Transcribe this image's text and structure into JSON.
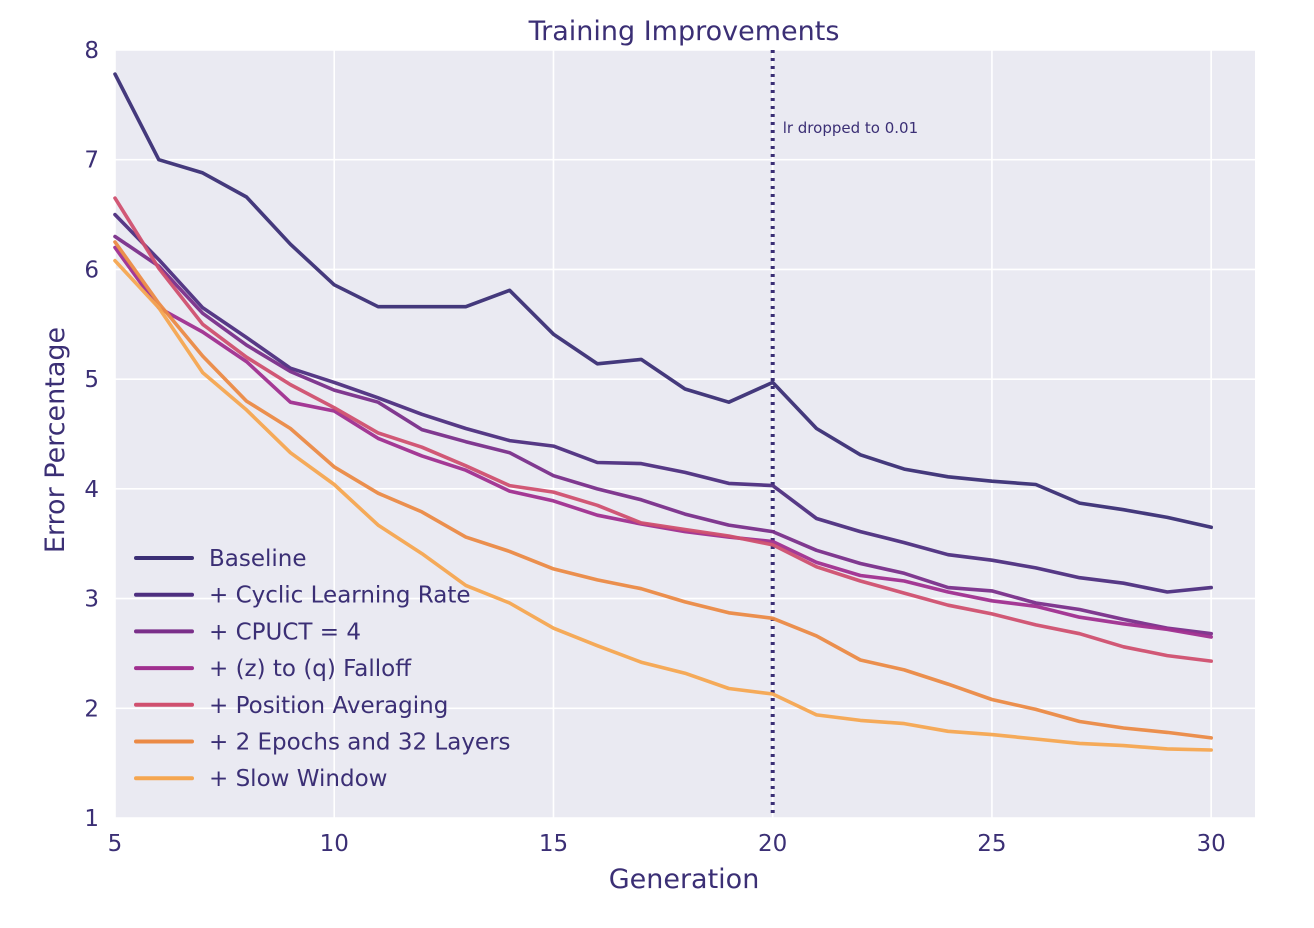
{
  "chart_data": {
    "type": "line",
    "title": "Training Improvements",
    "xlabel": "Generation",
    "ylabel": "Error Percentage",
    "xlim": [
      5,
      31
    ],
    "ylim": [
      1,
      8
    ],
    "xticks": [
      5,
      10,
      15,
      20,
      25,
      30
    ],
    "yticks": [
      1,
      2,
      3,
      4,
      5,
      6,
      7,
      8
    ],
    "grid": true,
    "legend_position": "lower-left",
    "x": [
      5,
      6,
      7,
      8,
      9,
      10,
      11,
      12,
      13,
      14,
      15,
      16,
      17,
      18,
      19,
      20,
      21,
      22,
      23,
      24,
      25,
      26,
      27,
      28,
      29,
      30
    ],
    "series": [
      {
        "name": "Baseline",
        "color": "#3b2f75",
        "values": [
          7.78,
          7.0,
          6.88,
          6.66,
          6.23,
          5.86,
          5.66,
          5.66,
          5.66,
          5.81,
          5.41,
          5.14,
          5.18,
          4.91,
          4.79,
          4.97,
          4.55,
          4.31,
          4.18,
          4.11,
          4.07,
          4.04,
          3.87,
          3.81,
          3.74,
          3.65
        ]
      },
      {
        "name": "+ Cyclic Learning Rate",
        "color": "#4e2f80",
        "values": [
          6.5,
          6.09,
          5.65,
          5.38,
          5.1,
          4.97,
          4.83,
          4.68,
          4.55,
          4.44,
          4.39,
          4.24,
          4.23,
          4.15,
          4.05,
          4.03,
          3.73,
          3.61,
          3.51,
          3.4,
          3.35,
          3.28,
          3.19,
          3.14,
          3.06,
          3.1
        ]
      },
      {
        "name": "+ CPUCT = 4",
        "color": "#7a2f8a",
        "values": [
          6.3,
          6.03,
          5.6,
          5.31,
          5.07,
          4.9,
          4.79,
          4.54,
          4.43,
          4.33,
          4.12,
          4.0,
          3.9,
          3.77,
          3.67,
          3.61,
          3.44,
          3.32,
          3.23,
          3.1,
          3.07,
          2.96,
          2.9,
          2.81,
          2.73,
          2.68
        ]
      },
      {
        "name": "+ (z) to (q) Falloff",
        "color": "#a02f8f",
        "values": [
          6.2,
          5.65,
          5.43,
          5.16,
          4.79,
          4.71,
          4.46,
          4.3,
          4.17,
          3.98,
          3.89,
          3.76,
          3.68,
          3.61,
          3.56,
          3.52,
          3.33,
          3.21,
          3.16,
          3.06,
          2.98,
          2.93,
          2.83,
          2.77,
          2.72,
          2.65
        ]
      },
      {
        "name": "+ Position Averaging",
        "color": "#d0506f",
        "values": [
          6.65,
          6.01,
          5.5,
          5.2,
          4.95,
          4.74,
          4.51,
          4.38,
          4.21,
          4.03,
          3.97,
          3.85,
          3.69,
          3.63,
          3.57,
          3.49,
          3.29,
          3.16,
          3.05,
          2.94,
          2.86,
          2.76,
          2.68,
          2.56,
          2.48,
          2.43
        ]
      },
      {
        "name": "+ 2 Epochs and 32 Layers",
        "color": "#eb8a45",
        "values": [
          6.25,
          5.69,
          5.21,
          4.8,
          4.55,
          4.2,
          3.96,
          3.79,
          3.56,
          3.43,
          3.27,
          3.17,
          3.09,
          2.97,
          2.87,
          2.82,
          2.66,
          2.44,
          2.35,
          2.22,
          2.08,
          1.99,
          1.88,
          1.82,
          1.78,
          1.73
        ]
      },
      {
        "name": "+ Slow Window",
        "color": "#f5a650",
        "values": [
          6.08,
          5.65,
          5.06,
          4.72,
          4.33,
          4.04,
          3.67,
          3.41,
          3.12,
          2.96,
          2.73,
          2.57,
          2.42,
          2.32,
          2.18,
          2.13,
          1.94,
          1.89,
          1.86,
          1.79,
          1.76,
          1.72,
          1.68,
          1.66,
          1.63,
          1.62
        ]
      }
    ],
    "annotations": [
      {
        "type": "vline",
        "x": 20,
        "style": "dotted",
        "color": "#3b2f75",
        "text": "lr dropped to 0.01"
      }
    ]
  },
  "style": {
    "plot_background": "#eaeaf2",
    "grid_color": "#ffffff",
    "text_color": "#3b2f75"
  }
}
